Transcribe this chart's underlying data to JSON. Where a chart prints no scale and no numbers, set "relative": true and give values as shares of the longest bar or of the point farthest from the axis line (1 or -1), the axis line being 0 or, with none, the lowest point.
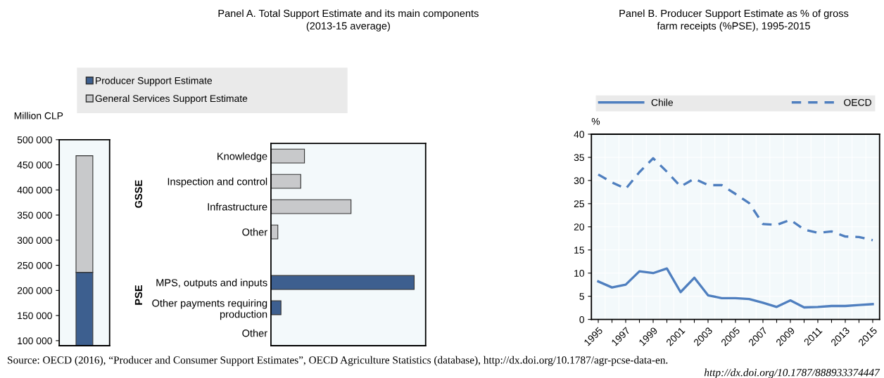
{
  "chart_data": [
    {
      "type": "bar",
      "ylabel": "Million CLP",
      "stacked": true,
      "categories": [
        null
      ],
      "series": [
        {
          "name": "Producer Support Estimate",
          "color": "#3d5f8f",
          "values": [
            236000
          ]
        },
        {
          "name": "General Services Support Estimate",
          "color": "#c8c9cb",
          "values": [
            232000
          ]
        }
      ],
      "ylim": [
        90000,
        500000
      ],
      "yticks": [
        {
          "value": 100000,
          "label": "100 000"
        },
        {
          "value": 150000,
          "label": "150 000"
        },
        {
          "value": 200000,
          "label": "200 000"
        },
        {
          "value": 250000,
          "label": "250 000"
        },
        {
          "value": 300000,
          "label": "300 000"
        },
        {
          "value": 350000,
          "label": "350 000"
        },
        {
          "value": 400000,
          "label": "400 000"
        },
        {
          "value": 450000,
          "label": "450 000"
        },
        {
          "value": 500000,
          "label": "500 000"
        }
      ],
      "legend": "top",
      "tick_labels": "y"
    },
    {
      "type": "bar",
      "title": "Panel A. Total Support Estimate and its main components\n(2013-15 average)",
      "orientation": "horizontal",
      "relative": true,
      "categories": [
        "Knowledge",
        "Inspection and control",
        "Infrastructure",
        "Other",
        null,
        "MPS, outputs and inputs",
        "Other payments requiring production",
        "Other"
      ],
      "values": [
        0.234,
        0.208,
        0.559,
        0.048,
        null,
        1,
        0.07,
        0
      ],
      "colors": [
        "#c8c9cb",
        "#c8c9cb",
        "#c8c9cb",
        "#c8c9cb",
        "#c8c9cb",
        "#3d5f8f",
        "#3d5f8f",
        "#3d5f8f"
      ],
      "annotations": [
        "GSSE",
        "PSE"
      ],
      "tick_labels": "y"
    },
    {
      "type": "line",
      "title": "Panel B. Producer Support Estimate as % of gross\nfarm receipts (%PSE), 1995-2015",
      "ylabel": "%",
      "categories": [
        "1995",
        null,
        "1997",
        null,
        "1999",
        null,
        "2001",
        null,
        "2003",
        null,
        "2005",
        null,
        "2007",
        null,
        "2009",
        null,
        "2011",
        null,
        "2013",
        null,
        "2015"
      ],
      "series": [
        {
          "name": "Chile",
          "color": "#4f7fbf",
          "line_style": "solid",
          "values": [
            8.2,
            6.9,
            7.5,
            10.4,
            10.0,
            11.0,
            5.9,
            9.0,
            5.2,
            4.6,
            4.6,
            4.4,
            3.6,
            2.7,
            4.1,
            2.6,
            2.7,
            2.9,
            2.9,
            3.1,
            3.3
          ]
        },
        {
          "name": "OECD",
          "color": "#4f7fbf",
          "line_style": "dashed",
          "values": [
            31.3,
            29.6,
            28.2,
            31.8,
            34.8,
            31.9,
            28.7,
            30.4,
            29.0,
            29.0,
            27.1,
            25.1,
            20.6,
            20.4,
            21.5,
            19.4,
            18.7,
            19.0,
            17.9,
            17.8,
            17.1
          ]
        }
      ],
      "ylim": [
        0,
        40
      ],
      "yticks": [
        0,
        5,
        10,
        15,
        20,
        25,
        30,
        35,
        40
      ],
      "legend": "top",
      "grid": true,
      "annotations": [
        "Source: OECD (2016), “Producer and Consumer Support Estimates”, OECD Agriculture Statistics (database), http://dx.doi.org/10.1787/agr-pcse-data-en.",
        "http://dx.doi.org/10.1787/888933374447"
      ]
    }
  ]
}
